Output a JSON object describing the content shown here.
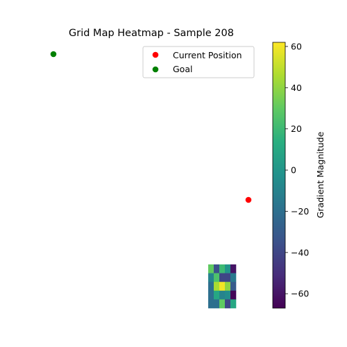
{
  "chart_data": {
    "type": "heatmap",
    "title": "Grid Map Heatmap - Sample 208",
    "colorbar": {
      "label": "Gradient Magnitude",
      "range": [
        -67,
        62
      ],
      "ticks": [
        60,
        40,
        20,
        0,
        -20,
        -40,
        -60
      ],
      "tick_labels": [
        "60",
        "40",
        "20",
        "0",
        "−20",
        "−40",
        "−60"
      ],
      "colormap": "viridis"
    },
    "grid": false,
    "axes_visible": false,
    "heatmap": {
      "rows": 5,
      "cols": 5,
      "values": [
        [
          30,
          -35,
          20,
          0,
          -60
        ],
        [
          -10,
          25,
          -40,
          -40,
          -15
        ],
        [
          -20,
          45,
          60,
          40,
          -30
        ],
        [
          -20,
          10,
          -10,
          -5,
          -65
        ],
        [
          -20,
          -20,
          30,
          -40,
          10
        ]
      ]
    },
    "points": [
      {
        "name": "Current Position",
        "color": "#ff0000",
        "marker": "circle"
      },
      {
        "name": "Goal",
        "color": "#008000",
        "marker": "circle"
      }
    ],
    "legend": {
      "placement": "top-right",
      "entries": [
        {
          "label": "Current Position",
          "color": "#ff0000"
        },
        {
          "label": "Goal",
          "color": "#008000"
        }
      ]
    }
  }
}
